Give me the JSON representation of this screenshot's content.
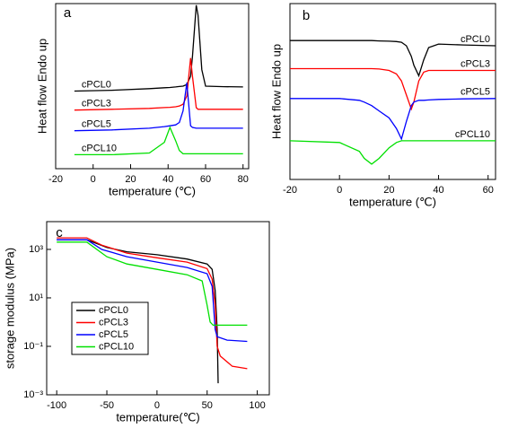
{
  "chart_data": [
    {
      "type": "line",
      "panel": "a",
      "xlabel": "temperature (℃)",
      "ylabel": "Heat flow Endo up",
      "xlim": [
        -20,
        83
      ],
      "xticks": [
        -20,
        0,
        20,
        40,
        60,
        80
      ],
      "ylim": [
        0,
        10
      ],
      "log_y": false,
      "x": [
        -10,
        10,
        30,
        38,
        41,
        44,
        46,
        48,
        50,
        52,
        53,
        55,
        56,
        58,
        60,
        70,
        80
      ],
      "series": [
        {
          "name": "cPCL0",
          "color": "#000000",
          "values": [
            4.7,
            4.75,
            4.85,
            4.9,
            4.92,
            4.95,
            4.98,
            5.0,
            5.1,
            5.6,
            6.8,
            9.9,
            9.3,
            6.0,
            5.0,
            4.97,
            4.95
          ]
        },
        {
          "name": "cPCL3",
          "color": "#ff0000",
          "values": [
            3.55,
            3.6,
            3.65,
            3.7,
            3.72,
            3.75,
            3.8,
            3.9,
            4.4,
            6.7,
            5.6,
            3.7,
            3.6,
            3.6,
            3.6,
            3.6,
            3.6
          ]
        },
        {
          "name": "cPCL5",
          "color": "#0000ff",
          "values": [
            2.3,
            2.35,
            2.45,
            2.55,
            2.6,
            2.65,
            2.8,
            3.5,
            5.2,
            2.6,
            2.5,
            2.45,
            2.45,
            2.45,
            2.45,
            2.45,
            2.45
          ]
        },
        {
          "name": "cPCL10",
          "color": "#00e000",
          "values": [
            0.85,
            0.85,
            0.95,
            1.6,
            2.5,
            1.7,
            1.1,
            0.9,
            0.9,
            0.9,
            0.9,
            0.9,
            0.9,
            0.9,
            0.9,
            0.9,
            0.9
          ]
        }
      ]
    },
    {
      "type": "line",
      "panel": "b",
      "xlabel": "temperature (℃)",
      "ylabel": "Heat flow Endo up",
      "xlim": [
        -20,
        63
      ],
      "xticks": [
        -20,
        0,
        20,
        40,
        60
      ],
      "ylim": [
        0,
        10
      ],
      "log_y": false,
      "x": [
        -20,
        0,
        8,
        10,
        13,
        16,
        20,
        23,
        25,
        27,
        29,
        30,
        32,
        34,
        36,
        40,
        50,
        63
      ],
      "series": [
        {
          "name": "cPCL0",
          "color": "#000000",
          "values": [
            7.9,
            7.9,
            7.9,
            7.9,
            7.9,
            7.88,
            7.86,
            7.84,
            7.8,
            7.6,
            7.0,
            6.5,
            5.9,
            6.8,
            7.5,
            7.7,
            7.65,
            7.6
          ]
        },
        {
          "name": "cPCL3",
          "color": "#ff0000",
          "values": [
            6.3,
            6.3,
            6.3,
            6.3,
            6.3,
            6.28,
            6.2,
            6.0,
            5.6,
            4.8,
            4.0,
            4.4,
            5.6,
            6.1,
            6.2,
            6.2,
            6.2,
            6.2
          ]
        },
        {
          "name": "cPCL5",
          "color": "#0000ff",
          "values": [
            4.6,
            4.6,
            4.5,
            4.4,
            4.2,
            3.9,
            3.5,
            2.9,
            2.3,
            3.3,
            4.2,
            4.4,
            4.5,
            4.5,
            4.52,
            4.55,
            4.58,
            4.6
          ]
        },
        {
          "name": "cPCL10",
          "color": "#00e000",
          "values": [
            2.2,
            2.1,
            1.6,
            1.2,
            0.87,
            1.2,
            1.8,
            2.1,
            2.2,
            2.2,
            2.2,
            2.2,
            2.2,
            2.2,
            2.2,
            2.2,
            2.2,
            2.2
          ]
        }
      ]
    },
    {
      "type": "line",
      "panel": "c",
      "xlabel": "temperature(℃)",
      "ylabel": "storage modulus (MPa)",
      "xlim": [
        -110,
        112
      ],
      "xticks": [
        -100,
        -50,
        0,
        50,
        100
      ],
      "ylim": [
        0.001,
        14000
      ],
      "log_y": true,
      "yticks": [
        {
          "value": 0.001,
          "label": "10⁻³"
        },
        {
          "value": 0.1,
          "label": "10⁻¹"
        },
        {
          "value": 10,
          "label": "10¹"
        },
        {
          "value": 1000,
          "label": "10³"
        }
      ],
      "legend": "lower-left",
      "series": [
        {
          "name": "cPCL0",
          "color": "#000000",
          "x": [
            -100,
            -70,
            -50,
            -30,
            0,
            30,
            50,
            55,
            58,
            60,
            61
          ],
          "values": [
            2500,
            2500,
            1200,
            800,
            600,
            400,
            250,
            150,
            20,
            0.5,
            0.003
          ]
        },
        {
          "name": "cPCL3",
          "color": "#ff0000",
          "x": [
            -100,
            -70,
            -55,
            -30,
            0,
            30,
            50,
            55,
            58,
            60,
            63,
            75,
            90
          ],
          "values": [
            3000,
            3000,
            1500,
            700,
            450,
            300,
            160,
            60,
            5,
            0.1,
            0.04,
            0.015,
            0.012
          ]
        },
        {
          "name": "cPCL5",
          "color": "#0000ff",
          "x": [
            -100,
            -70,
            -55,
            -30,
            0,
            30,
            50,
            55,
            58,
            60,
            70,
            90
          ],
          "values": [
            2500,
            2500,
            1000,
            500,
            300,
            180,
            100,
            30,
            0.5,
            0.25,
            0.18,
            0.16
          ]
        },
        {
          "name": "cPCL10",
          "color": "#00e000",
          "x": [
            -100,
            -70,
            -50,
            -30,
            0,
            30,
            45,
            50,
            53,
            56,
            90
          ],
          "values": [
            2000,
            2000,
            500,
            250,
            150,
            90,
            50,
            5,
            1,
            0.75,
            0.75
          ]
        }
      ]
    }
  ]
}
